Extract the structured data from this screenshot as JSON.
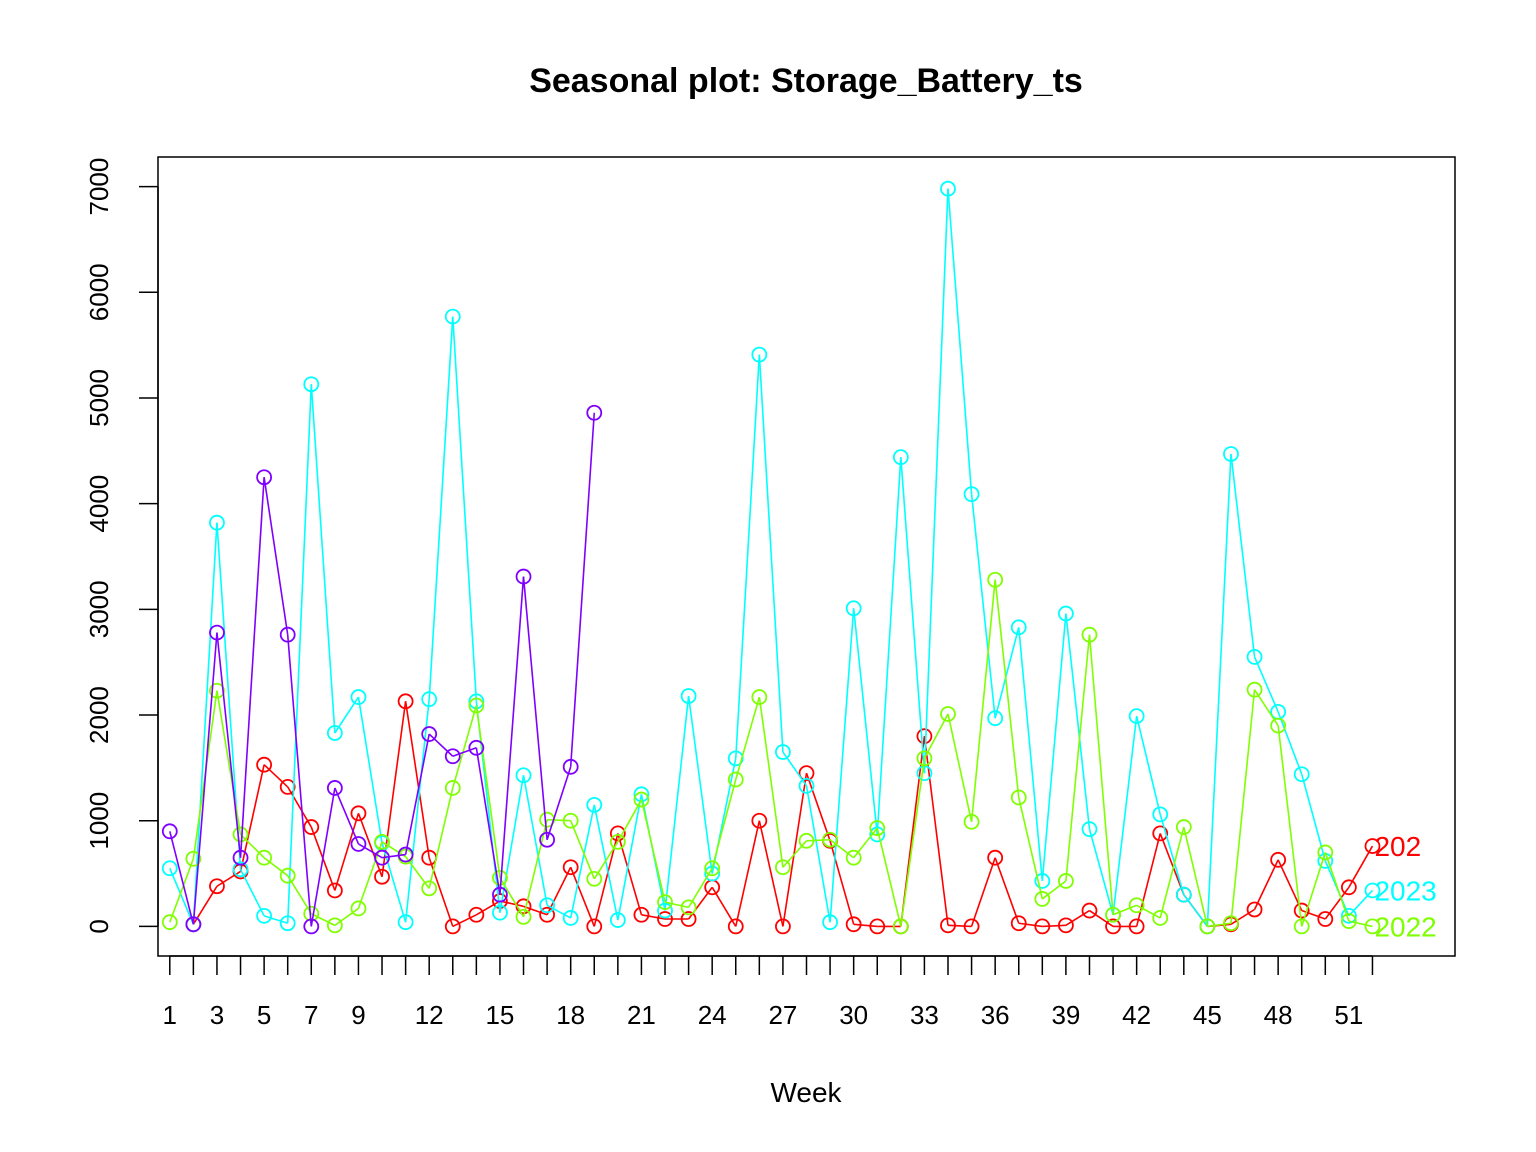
{
  "chart_data": {
    "type": "line",
    "title": "Seasonal plot: Storage_Battery_ts",
    "xlabel": "Week",
    "ylabel": "",
    "xlim": [
      0.5,
      55.5
    ],
    "ylim": [
      -280,
      7280
    ],
    "x_tick_values": [
      1,
      2,
      3,
      4,
      5,
      6,
      7,
      8,
      9,
      10,
      11,
      12,
      13,
      14,
      15,
      16,
      17,
      18,
      19,
      20,
      21,
      22,
      23,
      24,
      25,
      26,
      27,
      28,
      29,
      30,
      31,
      32,
      33,
      34,
      35,
      36,
      37,
      38,
      39,
      40,
      41,
      42,
      43,
      44,
      45,
      46,
      47,
      48,
      49,
      50,
      51,
      52
    ],
    "x_tick_labels": [
      "1",
      "3",
      "5",
      "7",
      "9",
      "12",
      "15",
      "18",
      "21",
      "24",
      "27",
      "30",
      "33",
      "36",
      "39",
      "42",
      "45",
      "48",
      "51"
    ],
    "x_tick_label_positions": [
      1,
      3,
      5,
      7,
      9,
      12,
      15,
      18,
      21,
      24,
      27,
      30,
      33,
      36,
      39,
      42,
      45,
      48,
      51
    ],
    "y_ticks": [
      0,
      1000,
      2000,
      3000,
      4000,
      5000,
      6000,
      7000
    ],
    "y_tick_labels": [
      "0",
      "1000",
      "2000",
      "3000",
      "4000",
      "5000",
      "6000",
      "7000"
    ],
    "grid": false,
    "series": [
      {
        "label": "202",
        "color": "#ff0000",
        "values": [
          null,
          20,
          380,
          520,
          1530,
          1320,
          940,
          340,
          1070,
          470,
          2130,
          650,
          0,
          110,
          240,
          190,
          110,
          560,
          0,
          880,
          110,
          70,
          70,
          370,
          0,
          1000,
          0,
          1450,
          810,
          20,
          0,
          0,
          1800,
          10,
          0,
          650,
          30,
          0,
          10,
          150,
          0,
          0,
          880,
          300,
          0,
          20,
          160,
          630,
          150,
          70,
          370,
          760
        ]
      },
      {
        "label": "2023",
        "color": "#00ffff",
        "values": [
          550,
          20,
          3820,
          540,
          100,
          30,
          5130,
          1830,
          2170,
          790,
          40,
          2150,
          5770,
          2130,
          130,
          1430,
          200,
          80,
          1150,
          60,
          1250,
          150,
          2180,
          500,
          1590,
          5410,
          1650,
          1330,
          40,
          3010,
          870,
          4440,
          1450,
          6980,
          4090,
          1970,
          2830,
          430,
          2960,
          920,
          110,
          1990,
          1060,
          300,
          0,
          4470,
          2550,
          2030,
          1440,
          620,
          100,
          340
        ]
      },
      {
        "label": "2022",
        "color": "#7fff00",
        "values": [
          40,
          640,
          2230,
          870,
          650,
          480,
          120,
          10,
          170,
          800,
          660,
          360,
          1310,
          2090,
          460,
          90,
          1010,
          1000,
          450,
          800,
          1200,
          230,
          180,
          550,
          1390,
          2170,
          560,
          810,
          820,
          650,
          930,
          0,
          1590,
          2010,
          990,
          3280,
          1220,
          260,
          430,
          2760,
          110,
          200,
          80,
          940,
          0,
          30,
          2240,
          1900,
          0,
          700,
          50,
          0
        ]
      },
      {
        "label": "",
        "color": "#7f00ff",
        "values": [
          900,
          20,
          2780,
          650,
          4250,
          2760,
          0,
          1310,
          780,
          650,
          680,
          1820,
          1610,
          1690,
          300,
          3310,
          820,
          1510,
          4860
        ]
      }
    ]
  }
}
